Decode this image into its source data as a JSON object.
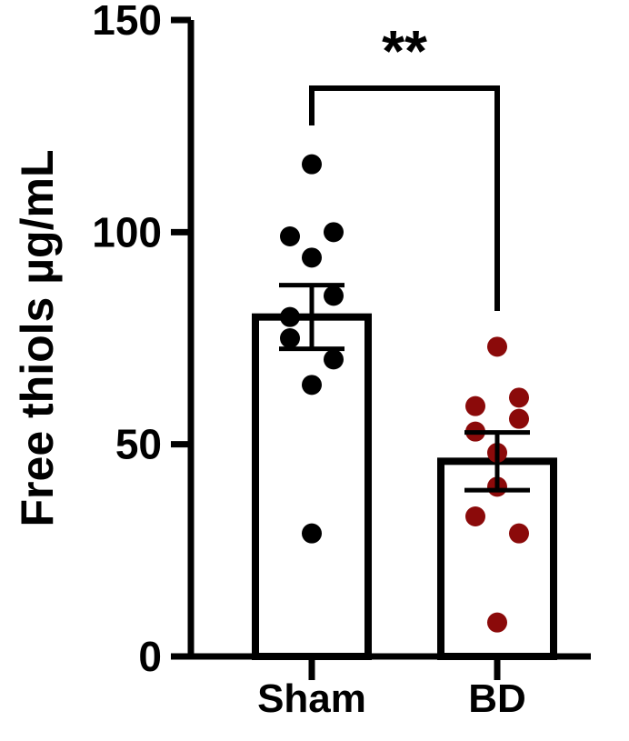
{
  "chart_data": {
    "type": "bar",
    "title": "",
    "xlabel": "",
    "ylabel": "Free thiols µg/mL",
    "ylim": [
      0,
      150
    ],
    "yticks": [
      0,
      50,
      100,
      150
    ],
    "categories": [
      "Sham",
      "BD"
    ],
    "means": [
      80,
      46
    ],
    "sem": [
      7.5,
      6.8
    ],
    "points": [
      [
        116,
        99,
        100,
        94,
        80,
        85,
        75,
        70,
        64,
        29
      ],
      [
        73,
        59,
        61,
        53,
        56,
        48,
        40,
        33,
        29,
        8
      ]
    ],
    "point_colors": [
      "#000000",
      "#8b0a0a"
    ],
    "significance": {
      "label": "**",
      "between": [
        0,
        1
      ]
    },
    "grid": false,
    "legend": "none"
  }
}
